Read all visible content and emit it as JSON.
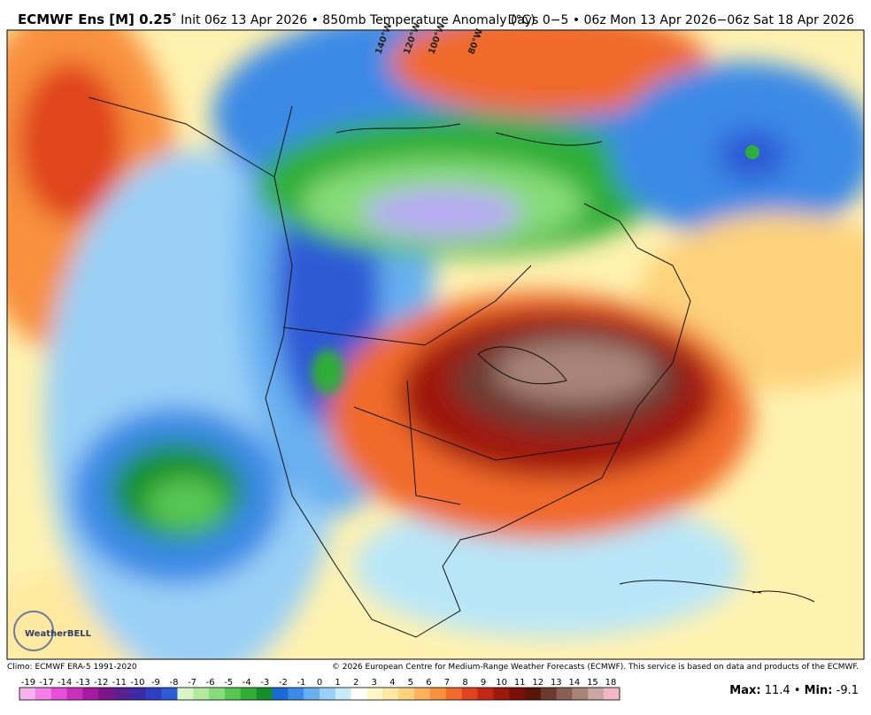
{
  "header": {
    "model": "ECMWF Ens [M] 0.25",
    "degree": "°",
    "init": "Init 06z 13 Apr 2026 • 850mb Temperature Anomaly (°C)",
    "period": "Days 0−5 • 06z Mon 13 Apr 2026−06z Sat 18 Apr 2026"
  },
  "map": {
    "longitudes": [
      "140°W",
      "120°W",
      "100°W",
      "80°W"
    ],
    "logo": "WeatherBELL"
  },
  "footer": {
    "climo": "Climo: ECMWF ERA-5 1991-2020",
    "copyright": "© 2026 European Centre for Medium-Range Weather Forecasts (ECMWF). This service is based on data and products of the ECMWF.",
    "max_label": "Max:",
    "max_value": 11.4,
    "separator": "•",
    "min_label": "Min:",
    "min_value": -9.1
  },
  "colorbar": {
    "labels": [
      -19,
      -17,
      -14,
      -13,
      -12,
      -11,
      -10,
      -9,
      -8,
      -7,
      -6,
      -5,
      -4,
      -3,
      -2,
      -1,
      0,
      1,
      2,
      3,
      4,
      5,
      6,
      7,
      8,
      9,
      10,
      11,
      12,
      13,
      14,
      15,
      18
    ],
    "colors": [
      "#f9b0ef",
      "#f27ee6",
      "#e64fd8",
      "#cc2fbf",
      "#a81aa2",
      "#7e1689",
      "#5a1f93",
      "#3d2aa8",
      "#2e3fc4",
      "#2d5ad6",
      "#d8f5c8",
      "#b2eaa0",
      "#86dc78",
      "#56c852",
      "#2fae38",
      "#14902a",
      "#1a6ad8",
      "#3a8ae6",
      "#68b0f0",
      "#9ad0f6",
      "#c6ebfa",
      "#ffffff",
      "#fff7c8",
      "#ffe9a0",
      "#fdd27a",
      "#fbb25a",
      "#f8903e",
      "#f06a2a",
      "#e0441c",
      "#c42814",
      "#a0180c",
      "#7c1008",
      "#5a1408",
      "#6e3a30",
      "#8a5e54",
      "#a88478",
      "#c8a8a0",
      "#f2b8c8"
    ]
  }
}
